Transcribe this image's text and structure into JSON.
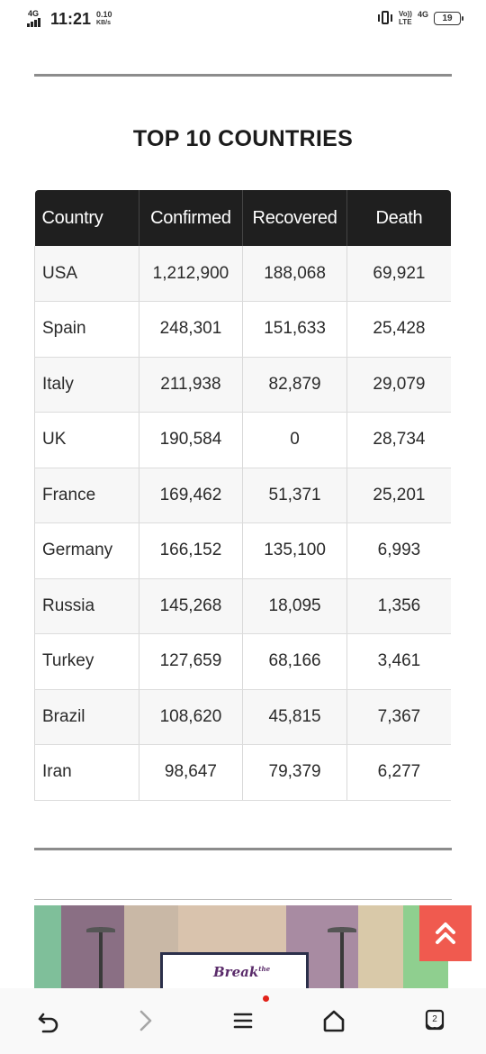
{
  "status_bar": {
    "network_label": "4G",
    "time": "11:21",
    "speed_value": "0.10",
    "speed_unit": "KB/s",
    "volte_top": "Vo))",
    "volte_bottom": "LTE",
    "network_right": "4G",
    "battery_level": "19"
  },
  "page": {
    "heading": "TOP 10 COUNTRIES"
  },
  "table": {
    "columns": [
      "Country",
      "Confirmed",
      "Recovered",
      "Death"
    ],
    "rows": [
      {
        "country": "USA",
        "confirmed": "1,212,900",
        "recovered": "188,068",
        "death": "69,921"
      },
      {
        "country": "Spain",
        "confirmed": "248,301",
        "recovered": "151,633",
        "death": "25,428"
      },
      {
        "country": "Italy",
        "confirmed": "211,938",
        "recovered": "82,879",
        "death": "29,079"
      },
      {
        "country": "UK",
        "confirmed": "190,584",
        "recovered": "0",
        "death": "28,734"
      },
      {
        "country": "France",
        "confirmed": "169,462",
        "recovered": "51,371",
        "death": "25,201"
      },
      {
        "country": "Germany",
        "confirmed": "166,152",
        "recovered": "135,100",
        "death": "6,993"
      },
      {
        "country": "Russia",
        "confirmed": "145,268",
        "recovered": "18,095",
        "death": "1,356"
      },
      {
        "country": "Turkey",
        "confirmed": "127,659",
        "recovered": "68,166",
        "death": "3,461"
      },
      {
        "country": "Brazil",
        "confirmed": "108,620",
        "recovered": "45,815",
        "death": "7,367"
      },
      {
        "country": "Iran",
        "confirmed": "98,647",
        "recovered": "79,379",
        "death": "6,277"
      }
    ]
  },
  "banner": {
    "text": "Break",
    "small_text": "the"
  },
  "navbar": {
    "tabs_count": "2",
    "icons": [
      "back-icon",
      "forward-icon",
      "menu-icon",
      "home-icon",
      "tabs-icon"
    ]
  },
  "colors": {
    "header_bg": "#1f1f1f",
    "scroll_top_bg": "#f05a4f",
    "notification_dot": "#e2231a"
  }
}
